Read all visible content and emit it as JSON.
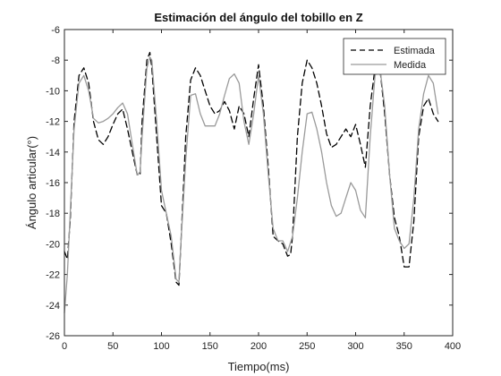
{
  "chart_data": {
    "type": "line",
    "title": "Estimación del ángulo del tobillo en Z",
    "xlabel": "Tiempo(ms)",
    "ylabel": "Ángulo articular(°)",
    "xlim": [
      0,
      400
    ],
    "ylim": [
      -26,
      -6
    ],
    "xticks": [
      0,
      50,
      100,
      150,
      200,
      250,
      300,
      350,
      400
    ],
    "yticks": [
      -6,
      -8,
      -10,
      -12,
      -14,
      -16,
      -18,
      -20,
      -22,
      -24,
      -26
    ],
    "grid": false,
    "legend_position": "top-right",
    "series": [
      {
        "name": "Estimada",
        "style": "dashed",
        "color": "#000000",
        "x": [
          0,
          3,
          6,
          10,
          15,
          20,
          25,
          30,
          35,
          40,
          45,
          50,
          55,
          60,
          65,
          70,
          75,
          78,
          80,
          85,
          88,
          90,
          95,
          100,
          105,
          110,
          115,
          118,
          120,
          125,
          130,
          135,
          140,
          145,
          150,
          155,
          160,
          165,
          170,
          175,
          180,
          185,
          190,
          195,
          200,
          205,
          210,
          215,
          220,
          225,
          230,
          233,
          235,
          240,
          245,
          250,
          255,
          260,
          265,
          270,
          275,
          280,
          285,
          290,
          295,
          300,
          305,
          310,
          315,
          320,
          325,
          330,
          335,
          340,
          345,
          350,
          355,
          360,
          365,
          370,
          375,
          380,
          385
        ],
        "y": [
          -20.5,
          -21,
          -18.5,
          -12,
          -9,
          -8.5,
          -9.5,
          -12,
          -13.2,
          -13.5,
          -13,
          -12.2,
          -11.5,
          -11.2,
          -12.5,
          -14,
          -15.5,
          -15.5,
          -12,
          -8,
          -7.5,
          -8.5,
          -13,
          -17.5,
          -18,
          -20,
          -22.5,
          -22.7,
          -20,
          -13,
          -9.3,
          -8.5,
          -9,
          -10,
          -11,
          -11.5,
          -11.3,
          -10.7,
          -11.3,
          -12.5,
          -11,
          -11.5,
          -13,
          -10.5,
          -8.3,
          -11,
          -15,
          -19.5,
          -19.8,
          -20,
          -20.8,
          -20.7,
          -19.5,
          -13,
          -9.5,
          -8,
          -8.5,
          -9.5,
          -11,
          -12.8,
          -13.7,
          -13.5,
          -13,
          -12.5,
          -13,
          -12.2,
          -13.5,
          -15,
          -11,
          -8.5,
          -8.5,
          -11.5,
          -15.5,
          -18.3,
          -19.5,
          -21.5,
          -21.5,
          -18.5,
          -13,
          -11,
          -10.5,
          -11.5,
          -12
        ]
      },
      {
        "name": "Medida",
        "style": "solid",
        "color": "#9a9a9a",
        "x": [
          0,
          3,
          6,
          10,
          15,
          20,
          25,
          30,
          35,
          40,
          45,
          50,
          55,
          60,
          65,
          70,
          75,
          78,
          80,
          85,
          88,
          90,
          95,
          100,
          105,
          110,
          115,
          118,
          120,
          125,
          130,
          135,
          140,
          145,
          150,
          155,
          160,
          165,
          170,
          175,
          180,
          185,
          190,
          195,
          200,
          205,
          210,
          215,
          220,
          225,
          230,
          235,
          240,
          245,
          250,
          255,
          260,
          265,
          270,
          275,
          280,
          285,
          290,
          295,
          300,
          305,
          310,
          315,
          320,
          325,
          330,
          335,
          340,
          345,
          350,
          355,
          360,
          365,
          370,
          375,
          380,
          385
        ],
        "y": [
          -24.5,
          -22,
          -18,
          -12.5,
          -9.5,
          -9,
          -10,
          -11.8,
          -12.1,
          -12,
          -11.8,
          -11.5,
          -11.1,
          -10.8,
          -11.5,
          -13.5,
          -15.5,
          -15.3,
          -13,
          -8.5,
          -7.8,
          -8,
          -12,
          -16.5,
          -18,
          -19.5,
          -22.3,
          -22.5,
          -20,
          -14.5,
          -10.3,
          -10.2,
          -11.5,
          -12.3,
          -12.3,
          -12.3,
          -11.5,
          -10.3,
          -9.2,
          -8.9,
          -9.5,
          -12,
          -13.5,
          -11.5,
          -9,
          -11.5,
          -15.5,
          -19,
          -19.8,
          -19.8,
          -20.5,
          -19.5,
          -17,
          -14,
          -11.5,
          -11.4,
          -12.5,
          -14,
          -16,
          -17.5,
          -18.2,
          -18,
          -17,
          -16,
          -16.5,
          -17.8,
          -18.3,
          -13,
          -9,
          -8.5,
          -11,
          -15.5,
          -19,
          -19.8,
          -20.3,
          -20,
          -17,
          -12.5,
          -10.2,
          -9,
          -9.5,
          -11.5
        ]
      }
    ]
  }
}
